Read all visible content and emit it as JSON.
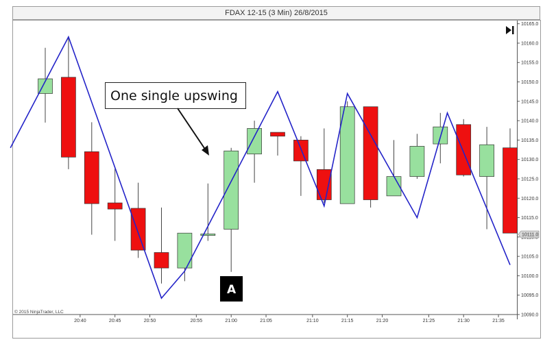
{
  "window": {
    "title": "FDAX 12-15 (3 Min)  26/8/2015"
  },
  "colors": {
    "up_candle": "#98e09e",
    "down_candle": "#ee1010",
    "swing_line": "#2323c8",
    "wick": "#444444",
    "price_marker_bg": "#d9d9d9"
  },
  "annotations": {
    "callout": "One single upswing",
    "marker": "A",
    "copyright": "© 2015 NinjaTrader, LLC",
    "price_marker": "10111.0"
  },
  "controls": {
    "scroll_end_icon": "skip-to-end-icon"
  },
  "chart_data": {
    "type": "candlestick",
    "title": "FDAX 12-15 (3 Min)  26/8/2015",
    "y_ticks": [
      "10165.0",
      "10160.0",
      "10155.0",
      "10150.0",
      "10145.0",
      "10140.0",
      "10135.0",
      "10130.0",
      "10125.0",
      "10120.0",
      "10115.0",
      "10110.0",
      "10105.0",
      "10100.0",
      "10095.0",
      "10090.0"
    ],
    "y_range": [
      10090,
      10166
    ],
    "x_ticks": [
      "20:40",
      "20:45",
      "20:50",
      "20:55",
      "21:00",
      "21:05",
      "21:10",
      "21:15",
      "21:20",
      "21:25",
      "21:30",
      "21:35"
    ],
    "x_tick_index": [
      1.5,
      3,
      4.5,
      6.5,
      8,
      9.5,
      11.5,
      13,
      14.5,
      16.5,
      18,
      19.5
    ],
    "candles": [
      {
        "o": 10147.0,
        "h": 10158.8,
        "l": 10139.5,
        "c": 10150.8
      },
      {
        "o": 10151.2,
        "h": 10161.8,
        "l": 10127.5,
        "c": 10130.6
      },
      {
        "o": 10132.0,
        "h": 10139.6,
        "l": 10110.6,
        "c": 10118.6
      },
      {
        "o": 10118.8,
        "h": 10127.6,
        "l": 10109.0,
        "c": 10117.2
      },
      {
        "o": 10117.4,
        "h": 10124.0,
        "l": 10104.6,
        "c": 10106.6
      },
      {
        "o": 10106.0,
        "h": 10117.6,
        "l": 10098.0,
        "c": 10102.0
      },
      {
        "o": 10102.0,
        "h": 10111.0,
        "l": 10098.6,
        "c": 10111.0
      },
      {
        "o": 10110.4,
        "h": 10123.8,
        "l": 10109.0,
        "c": 10110.8
      },
      {
        "o": 10112.0,
        "h": 10133.0,
        "l": 10101.0,
        "c": 10132.2
      },
      {
        "o": 10131.4,
        "h": 10140.0,
        "l": 10124.0,
        "c": 10138.0
      },
      {
        "o": 10137.0,
        "h": 10137.0,
        "l": 10131.0,
        "c": 10136.0
      },
      {
        "o": 10135.0,
        "h": 10136.0,
        "l": 10120.6,
        "c": 10129.6
      },
      {
        "o": 10127.4,
        "h": 10138.0,
        "l": 10118.8,
        "c": 10119.6
      },
      {
        "o": 10118.6,
        "h": 10145.0,
        "l": 10118.6,
        "c": 10143.6
      },
      {
        "o": 10143.6,
        "h": 10143.6,
        "l": 10117.6,
        "c": 10119.6
      },
      {
        "o": 10120.6,
        "h": 10135.0,
        "l": 10120.6,
        "c": 10125.6
      },
      {
        "o": 10125.6,
        "h": 10136.6,
        "l": 10125.0,
        "c": 10133.4
      },
      {
        "o": 10134.0,
        "h": 10142.0,
        "l": 10129.0,
        "c": 10138.4
      },
      {
        "o": 10139.0,
        "h": 10140.4,
        "l": 10125.6,
        "c": 10126.0
      },
      {
        "o": 10125.6,
        "h": 10138.4,
        "l": 10112.0,
        "c": 10133.8
      },
      {
        "o": 10133.0,
        "h": 10138.0,
        "l": 10111.0,
        "c": 10111.0
      }
    ],
    "swing_points": [
      {
        "i": -1.5,
        "p": 10133.0
      },
      {
        "i": 1,
        "p": 10161.6
      },
      {
        "i": 5,
        "p": 10094.2
      },
      {
        "i": 6,
        "p": 10101.2
      },
      {
        "i": 10,
        "p": 10147.5
      },
      {
        "i": 12,
        "p": 10118.0
      },
      {
        "i": 13,
        "p": 10147.0
      },
      {
        "i": 16,
        "p": 10115.0
      },
      {
        "i": 17.3,
        "p": 10142.0
      },
      {
        "i": 20,
        "p": 10102.8
      }
    ]
  }
}
